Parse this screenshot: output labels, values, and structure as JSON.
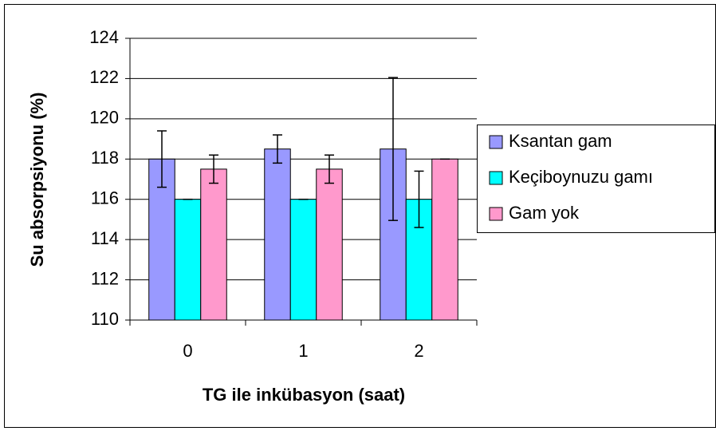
{
  "chart_data": {
    "type": "bar",
    "categories": [
      "0",
      "1",
      "2"
    ],
    "xlabel": "TG ile inkübasyon (saat)",
    "ylabel": "Su absorpsiyonu (%)",
    "series": [
      {
        "name": "Ksantan gam",
        "color": "#9999ff",
        "values": [
          118,
          118.5,
          118.5
        ],
        "errors": [
          1.4,
          0.7,
          3.55
        ]
      },
      {
        "name": "Keçiboynuzu gamı",
        "color": "#00ffff",
        "values": [
          116,
          116,
          116
        ],
        "errors": [
          0,
          0,
          1.4
        ]
      },
      {
        "name": "Gam yok",
        "color": "#ff99cc",
        "values": [
          117.5,
          117.5,
          118
        ],
        "errors": [
          0.7,
          0.7,
          0
        ]
      }
    ],
    "ylim": [
      110,
      124
    ],
    "yticks": [
      110,
      112,
      114,
      116,
      118,
      120,
      122,
      124
    ],
    "grid": true,
    "legend": "right"
  }
}
